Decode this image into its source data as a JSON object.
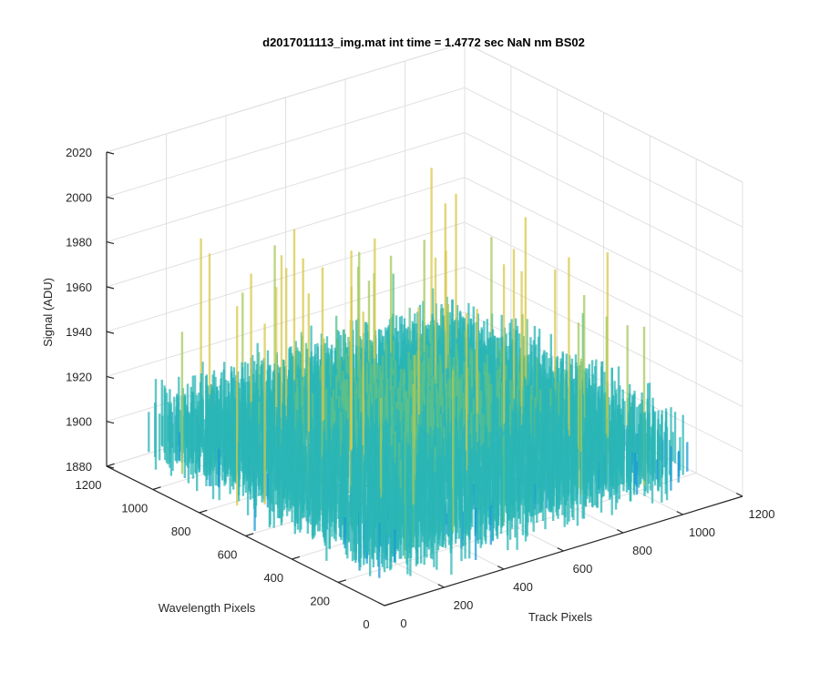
{
  "chart_data": {
    "type": "surface",
    "title": "d2017011113_img.mat int time = 1.4772 sec  NaN nm BS02",
    "xlabel": "Track Pixels",
    "ylabel": "Wavelength Pixels",
    "zlabel": "Signal (ADU)",
    "xlim": [
      0,
      1200
    ],
    "ylim": [
      0,
      1200
    ],
    "zlim": [
      1880,
      2020
    ],
    "x_ticks": [
      "0",
      "200",
      "400",
      "600",
      "800",
      "1000",
      "1200"
    ],
    "y_ticks": [
      "0",
      "200",
      "400",
      "600",
      "800",
      "1000",
      "1200"
    ],
    "z_ticks": [
      "1880",
      "1900",
      "1920",
      "1940",
      "1960",
      "1980",
      "2000",
      "2020"
    ],
    "data_extent": {
      "x": [
        0,
        1024
      ],
      "y": [
        0,
        1024
      ]
    },
    "signal_baseline": 1918,
    "signal_range": [
      1870,
      1995
    ],
    "colormap": [
      "#1a6fd6",
      "#1a9ad6",
      "#2bb5b5",
      "#5cc08a",
      "#a6c85a",
      "#d8c84a"
    ]
  }
}
